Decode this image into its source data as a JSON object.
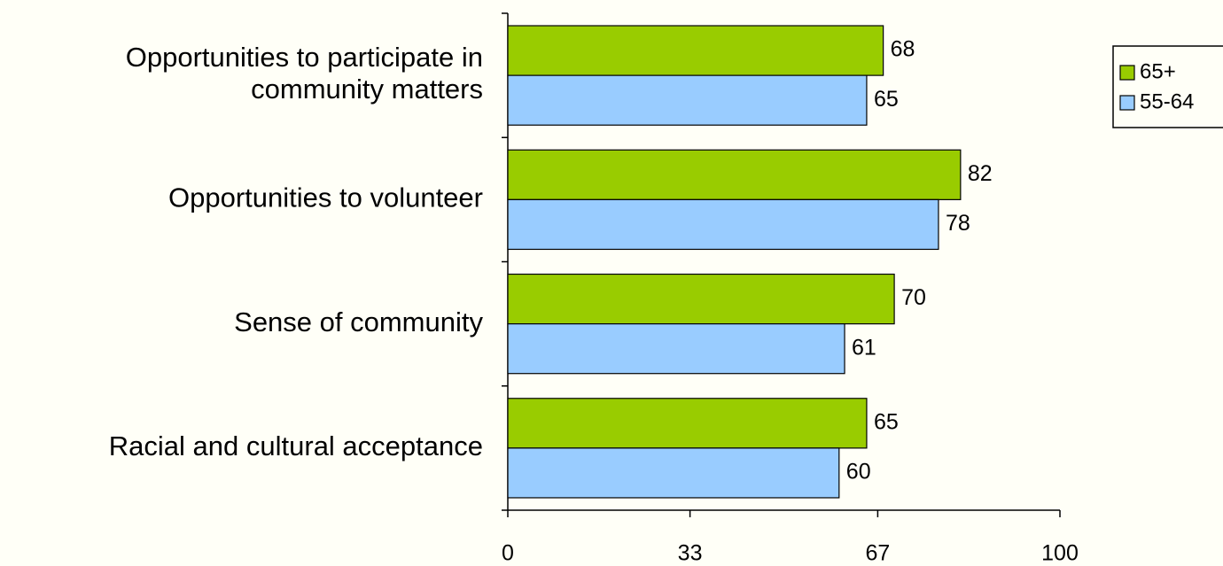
{
  "chart_data": {
    "type": "barh",
    "categories": [
      "Opportunities to participate in\ncommunity matters",
      "Opportunities to volunteer",
      "Sense of community",
      "Racial and cultural acceptance"
    ],
    "series": [
      {
        "name": "65+",
        "color": "#99cc00",
        "values": [
          68,
          82,
          70,
          65
        ]
      },
      {
        "name": "55-64",
        "color": "#99ccff",
        "values": [
          65,
          78,
          61,
          60
        ]
      }
    ],
    "xlim": [
      0,
      100
    ],
    "xticks": [
      0,
      33,
      67,
      100
    ],
    "legend": "top-right"
  }
}
